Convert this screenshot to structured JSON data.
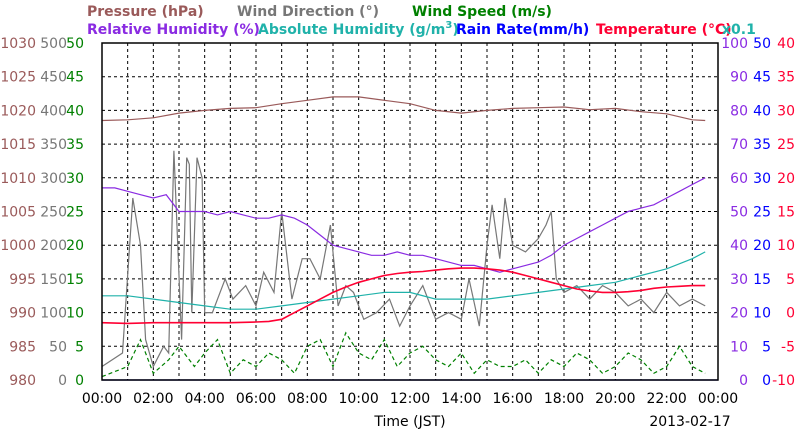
{
  "chart_data": {
    "type": "line",
    "legend": {
      "pressure": "Pressure (hPa)",
      "wind_direction": "Wind Direction (°)",
      "wind_speed": "Wind Speed (m/s)",
      "relative_humidity": "Relative Humidity (%)",
      "absolute_humidity": "Absolute Humidity (g/m",
      "absolute_humidity_sup": "3",
      "absolute_humidity_end": ")",
      "rain_rate": "Rain Rate(mm/h)",
      "temperature": "Temperature (°C)",
      "rain_scale": "x0.1"
    },
    "colors": {
      "pressure": "#9a5a5a",
      "wind_direction": "#777777",
      "wind_speed": "#008000",
      "relative_humidity": "#8a2be2",
      "absolute_humidity": "#20b2aa",
      "rain_rate": "#0000ff",
      "temperature": "#ff0033"
    },
    "xlabel": "Time (JST)",
    "date": "2013-02-17",
    "x_ticks": [
      "00:00",
      "02:00",
      "04:00",
      "06:00",
      "08:00",
      "10:00",
      "12:00",
      "14:00",
      "16:00",
      "18:00",
      "20:00",
      "22:00",
      "00:00"
    ],
    "x_range_hours": [
      0,
      24
    ],
    "axes": {
      "pressure": {
        "min": 980,
        "max": 1030,
        "ticks": [
          "1030",
          "1025",
          "1020",
          "1015",
          "1010",
          "1005",
          "1000",
          "995",
          "990",
          "985",
          "980"
        ]
      },
      "wind_direction": {
        "min": 0,
        "max": 500,
        "ticks": [
          "500",
          "450",
          "400",
          "350",
          "300",
          "250",
          "200",
          "150",
          "100",
          "50",
          "0"
        ]
      },
      "wind_speed": {
        "min": 0,
        "max": 50,
        "ticks": [
          "50",
          "45",
          "40",
          "35",
          "30",
          "25",
          "20",
          "15",
          "10",
          "5",
          "0"
        ]
      },
      "relative_humidity": {
        "min": 0,
        "max": 100,
        "ticks": [
          "100",
          "90",
          "80",
          "70",
          "60",
          "50",
          "40",
          "30",
          "20",
          "10",
          "0"
        ]
      },
      "rain_rate": {
        "min": 0,
        "max": 50,
        "ticks": [
          "50",
          "45",
          "40",
          "35",
          "30",
          "25",
          "20",
          "15",
          "10",
          "5",
          "0"
        ]
      },
      "temperature": {
        "min": -10,
        "max": 40,
        "ticks": [
          "40",
          "35",
          "30",
          "25",
          "20",
          "15",
          "10",
          "5",
          "0",
          "-5",
          "-10"
        ]
      }
    },
    "series": [
      {
        "name": "Pressure (hPa)",
        "axis": "pressure",
        "x": [
          0,
          1,
          2,
          3,
          4,
          5,
          6,
          7,
          8,
          9,
          10,
          11,
          12,
          13,
          14,
          15,
          16,
          17,
          18,
          19,
          20,
          21,
          22,
          23,
          23.5
        ],
        "y": [
          1018.5,
          1018.6,
          1018.9,
          1019.6,
          1020.0,
          1020.3,
          1020.4,
          1021.0,
          1021.5,
          1022.0,
          1022.0,
          1021.5,
          1021.0,
          1020.0,
          1019.6,
          1020.0,
          1020.3,
          1020.4,
          1020.5,
          1020.1,
          1020.3,
          1019.8,
          1019.5,
          1018.6,
          1018.5
        ]
      },
      {
        "name": "Wind Direction (°)",
        "axis": "wind_direction",
        "x": [
          0,
          0.8,
          1.2,
          1.5,
          1.7,
          2.0,
          2.4,
          2.6,
          2.8,
          3.1,
          3.3,
          3.4,
          3.5,
          3.7,
          3.9,
          4.0,
          4.3,
          4.8,
          5.1,
          5.6,
          6.0,
          6.3,
          6.7,
          7.0,
          7.4,
          7.8,
          8.1,
          8.5,
          8.9,
          9.2,
          9.5,
          9.8,
          10.2,
          10.7,
          11.2,
          11.6,
          12.0,
          12.5,
          13.0,
          13.5,
          14.0,
          14.3,
          14.7,
          15.0,
          15.2,
          15.5,
          15.7,
          16.0,
          16.5,
          17.0,
          17.3,
          17.5,
          17.7,
          18.0,
          18.5,
          19.0,
          19.5,
          20.0,
          20.5,
          21.0,
          21.5,
          22.0,
          22.5,
          23.0,
          23.5
        ],
        "y": [
          20,
          40,
          270,
          200,
          60,
          20,
          50,
          40,
          340,
          60,
          330,
          320,
          100,
          330,
          300,
          100,
          100,
          150,
          120,
          140,
          110,
          160,
          130,
          250,
          120,
          180,
          180,
          150,
          230,
          110,
          140,
          130,
          90,
          100,
          120,
          80,
          110,
          140,
          90,
          100,
          90,
          150,
          80,
          200,
          260,
          180,
          270,
          200,
          190,
          210,
          230,
          250,
          150,
          130,
          140,
          120,
          140,
          130,
          110,
          120,
          100,
          130,
          110,
          120,
          110
        ]
      },
      {
        "name": "Wind Speed (m/s)",
        "axis": "wind_speed",
        "x": [
          0,
          1,
          1.5,
          2,
          2.6,
          3,
          3.6,
          4,
          4.5,
          5,
          5.5,
          6,
          6.5,
          7,
          7.5,
          8,
          8.5,
          9,
          9.5,
          10,
          10.5,
          11,
          11.5,
          12,
          12.5,
          13,
          13.5,
          14,
          14.5,
          15,
          15.5,
          16,
          16.5,
          17,
          17.5,
          18,
          18.5,
          19,
          19.5,
          20,
          20.5,
          21,
          21.5,
          22,
          22.5,
          23,
          23.5
        ],
        "y": [
          0.5,
          2,
          6,
          1,
          3,
          5,
          2,
          4,
          6,
          1,
          3,
          2,
          4,
          3,
          1,
          5,
          6,
          2,
          7,
          4,
          3,
          6,
          2,
          4,
          5,
          3,
          2,
          4,
          1,
          3,
          2,
          2,
          3,
          1,
          3,
          2,
          4,
          3,
          1,
          2,
          4,
          3,
          1,
          2,
          5,
          2,
          1
        ]
      },
      {
        "name": "Relative Humidity (%)",
        "axis": "relative_humidity",
        "x": [
          0,
          0.5,
          1,
          1.5,
          2,
          2.5,
          3,
          3.5,
          4,
          4.5,
          5,
          5.5,
          6,
          6.5,
          7,
          7.5,
          8,
          8.5,
          9,
          9.5,
          10,
          10.5,
          11,
          11.5,
          12,
          12.5,
          13,
          13.5,
          14,
          14.5,
          15,
          15.5,
          16,
          16.5,
          17,
          17.5,
          18,
          18.5,
          19,
          19.5,
          20,
          20.5,
          21,
          21.5,
          22,
          22.5,
          23,
          23.5
        ],
        "y": [
          57,
          57,
          56,
          55,
          54,
          55,
          50,
          50,
          50,
          49,
          50,
          49,
          48,
          48,
          49,
          48,
          46,
          43,
          40,
          39,
          38,
          37,
          37,
          38,
          37,
          37,
          36,
          35,
          34,
          34,
          33,
          32,
          33,
          34,
          35,
          37,
          40,
          42,
          44,
          46,
          48,
          50,
          51,
          52,
          54,
          56,
          58,
          60
        ]
      },
      {
        "name": "Absolute Humidity (g/m3)",
        "axis": "relative_humidity",
        "x": [
          0,
          1,
          2,
          3,
          4,
          5,
          6,
          7,
          8,
          9,
          10,
          11,
          12,
          13,
          14,
          15,
          16,
          17,
          18,
          19,
          20,
          21,
          22,
          23,
          23.5
        ],
        "y": [
          25,
          25,
          24,
          23,
          22,
          21,
          21,
          22,
          23,
          24,
          25,
          26,
          26,
          24,
          24,
          24,
          25,
          26,
          27,
          28,
          29,
          31,
          33,
          36,
          38
        ]
      },
      {
        "name": "Temperature (°C)",
        "axis": "temperature",
        "x": [
          0,
          1,
          2,
          3,
          4,
          5,
          6,
          6.5,
          7,
          7.5,
          8,
          8.5,
          9,
          9.5,
          10,
          10.5,
          11,
          11.5,
          12,
          12.5,
          13,
          13.5,
          14,
          14.5,
          15,
          15.5,
          16,
          16.5,
          17,
          17.5,
          18,
          18.5,
          19,
          19.5,
          20,
          20.5,
          21,
          21.5,
          22,
          22.5,
          23,
          23.5
        ],
        "y": [
          -1.5,
          -1.6,
          -1.5,
          -1.5,
          -1.5,
          -1.5,
          -1.4,
          -1.3,
          -1.0,
          0,
          1,
          2,
          3,
          3.8,
          4.5,
          5,
          5.5,
          5.8,
          6.0,
          6.1,
          6.3,
          6.5,
          6.6,
          6.6,
          6.5,
          6.3,
          6.0,
          5.5,
          5.0,
          4.5,
          4.0,
          3.5,
          3.2,
          3.0,
          3.0,
          3.1,
          3.3,
          3.6,
          3.8,
          3.9,
          4.0,
          4.0
        ]
      },
      {
        "name": "Rain Rate(mm/h)",
        "axis": "rain_rate",
        "x": [
          0,
          24
        ],
        "y": [
          0,
          0
        ]
      }
    ]
  }
}
